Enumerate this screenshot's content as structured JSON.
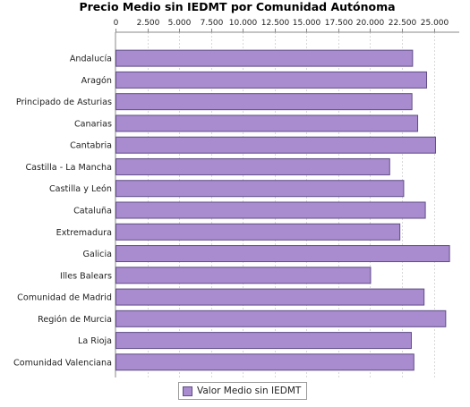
{
  "chart_data": {
    "type": "bar",
    "orientation": "horizontal",
    "title": "Precio Medio sin IEDMT por Comunidad Autónoma",
    "xlabel": "",
    "ylabel": "",
    "xlim": [
      0,
      27000
    ],
    "xticks": [
      0,
      2500,
      5000,
      7500,
      10000,
      12500,
      15000,
      17500,
      20000,
      22500,
      25000
    ],
    "xtick_labels": [
      "0",
      "2.500",
      "5.000",
      "7.500",
      "10.000",
      "12.500",
      "15.000",
      "17.500",
      "20.000",
      "22.500",
      "25.000"
    ],
    "axis_position": "top",
    "grid": true,
    "legend_position": "bottom",
    "bar_color": "#a98bcf",
    "bar_edge_color": "#5f4d86",
    "categories": [
      "Andalucía",
      "Aragón",
      "Principado de Asturias",
      "Canarias",
      "Cantabria",
      "Castilla - La Mancha",
      "Castilla y León",
      "Cataluña",
      "Extremadura",
      "Galicia",
      "Illes Balears",
      "Comunidad de Madrid",
      "Región de Murcia",
      "La Rioja",
      "Comunidad Valenciana"
    ],
    "series": [
      {
        "name": "Valor Medio sin IEDMT",
        "values": [
          23300,
          24400,
          23250,
          23700,
          25100,
          21500,
          22600,
          24300,
          22300,
          26200,
          20000,
          24200,
          25900,
          23200,
          23400
        ]
      }
    ]
  }
}
